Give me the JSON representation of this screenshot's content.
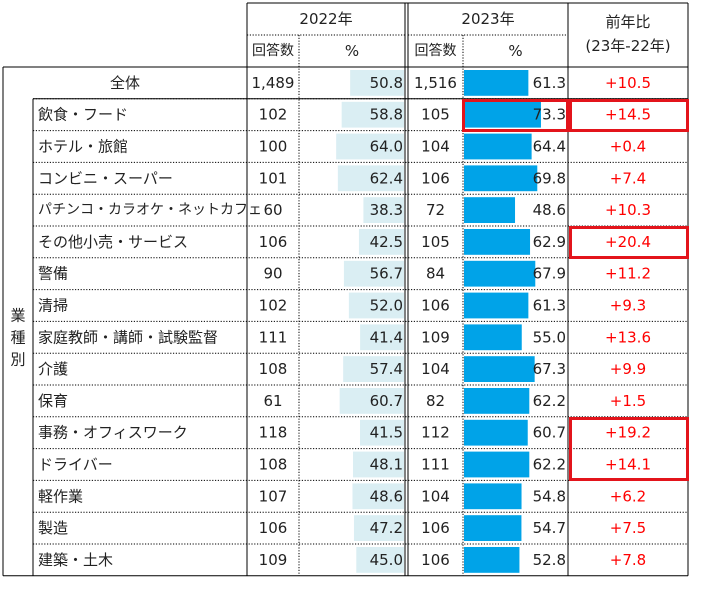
{
  "header": {
    "year_2022": "2022年",
    "year_2023": "2023年",
    "respondents": "回答数",
    "percent": "%",
    "yoy_title": "前年比",
    "yoy_sub": "(23年-22年)"
  },
  "group_label": [
    "業",
    "種",
    "別"
  ],
  "total": {
    "label": "全体",
    "n2022": "1,489",
    "p2022": "50.8",
    "n2023": "1,516",
    "p2023": "61.3",
    "diff": "+10.5"
  },
  "rows": [
    {
      "label": "飲食・フード",
      "n2022": "102",
      "p2022": "58.8",
      "n2023": "105",
      "p2023": "73.3",
      "diff": "+14.5",
      "highlight_2023": true,
      "highlight_diff": true
    },
    {
      "label": "ホテル・旅館",
      "n2022": "100",
      "p2022": "64.0",
      "n2023": "104",
      "p2023": "64.4",
      "diff": "+0.4"
    },
    {
      "label": "コンビニ・スーパー",
      "n2022": "101",
      "p2022": "62.4",
      "n2023": "106",
      "p2023": "69.8",
      "diff": "+7.4"
    },
    {
      "label": "パチンコ・カラオケ・ネットカフェ",
      "n2022": "60",
      "p2022": "38.3",
      "n2023": "72",
      "p2023": "48.6",
      "diff": "+10.3"
    },
    {
      "label": "その他小売・サービス",
      "n2022": "106",
      "p2022": "42.5",
      "n2023": "105",
      "p2023": "62.9",
      "diff": "+20.4",
      "highlight_diff": true
    },
    {
      "label": "警備",
      "n2022": "90",
      "p2022": "56.7",
      "n2023": "84",
      "p2023": "67.9",
      "diff": "+11.2"
    },
    {
      "label": "清掃",
      "n2022": "102",
      "p2022": "52.0",
      "n2023": "106",
      "p2023": "61.3",
      "diff": "+9.3"
    },
    {
      "label": "家庭教師・講師・試験監督",
      "n2022": "111",
      "p2022": "41.4",
      "n2023": "109",
      "p2023": "55.0",
      "diff": "+13.6"
    },
    {
      "label": "介護",
      "n2022": "108",
      "p2022": "57.4",
      "n2023": "104",
      "p2023": "67.3",
      "diff": "+9.9"
    },
    {
      "label": "保育",
      "n2022": "61",
      "p2022": "60.7",
      "n2023": "82",
      "p2023": "62.2",
      "diff": "+1.5"
    },
    {
      "label": "事務・オフィスワーク",
      "n2022": "118",
      "p2022": "41.5",
      "n2023": "112",
      "p2023": "60.7",
      "diff": "+19.2",
      "highlight_diff": true
    },
    {
      "label": "ドライバー",
      "n2022": "108",
      "p2022": "48.1",
      "n2023": "111",
      "p2023": "62.2",
      "diff": "+14.1",
      "highlight_diff": true
    },
    {
      "label": "軽作業",
      "n2022": "107",
      "p2022": "48.6",
      "n2023": "104",
      "p2023": "54.8",
      "diff": "+6.2"
    },
    {
      "label": "製造",
      "n2022": "106",
      "p2022": "47.2",
      "n2023": "106",
      "p2023": "54.7",
      "diff": "+7.5"
    },
    {
      "label": "建築・土木",
      "n2022": "109",
      "p2022": "45.0",
      "n2023": "106",
      "p2023": "52.8",
      "diff": "+7.8"
    }
  ],
  "colors": {
    "bar2022": "#daeef3",
    "bar2023": "#00a3e8",
    "diff_text": "#ff0000",
    "highlight": "#e3141b",
    "rule": "#000000"
  }
}
